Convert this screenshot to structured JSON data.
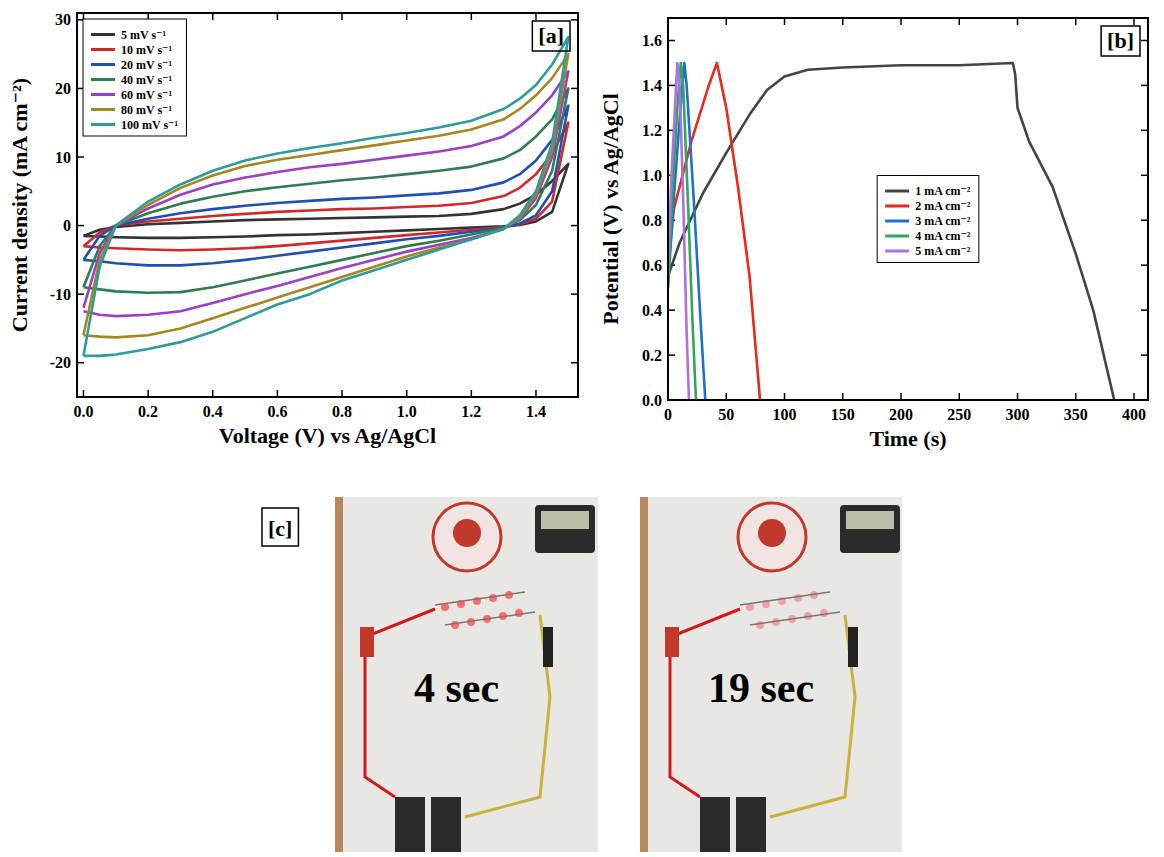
{
  "chart_data": [
    {
      "type": "line",
      "title": "[a]",
      "x_label": "Voltage (V) vs Ag/AgCl",
      "y_label": "Current density (mA cm⁻²)",
      "xlim": [
        -0.02,
        1.53
      ],
      "ylim": [
        -25,
        31
      ],
      "xticks": [
        {
          "value": 0,
          "label": "0.0"
        },
        0.2,
        0.4,
        0.6,
        0.8,
        {
          "value": 1,
          "label": "1.0"
        },
        1.2,
        1.4
      ],
      "yticks": [
        -20,
        -10,
        0,
        10,
        20,
        30
      ],
      "grid": false,
      "legend": "upper left",
      "x": [
        0,
        0.05,
        0.1,
        0.2,
        0.3,
        0.4,
        0.5,
        0.6,
        0.7,
        0.8,
        0.9,
        1.0,
        1.1,
        1.2,
        1.3,
        1.35,
        1.4,
        1.45,
        1.5,
        1.45,
        1.4,
        1.35,
        1.3,
        1.2,
        1.1,
        1.0,
        0.9,
        0.8,
        0.7,
        0.6,
        0.5,
        0.4,
        0.3,
        0.2,
        0.1,
        0.05,
        0
      ],
      "series": [
        {
          "name": "5 mV s⁻¹",
          "color": "#333333",
          "values": [
            -1.5,
            -0.6,
            -0.2,
            0.2,
            0.4,
            0.6,
            0.8,
            0.9,
            1,
            1.1,
            1.2,
            1.3,
            1.4,
            1.7,
            2.4,
            3.2,
            4.5,
            6.5,
            9,
            2,
            0.6,
            0.1,
            -0.1,
            -0.3,
            -0.5,
            -0.7,
            -0.9,
            -1.1,
            -1.3,
            -1.4,
            -1.6,
            -1.7,
            -1.8,
            -1.8,
            -1.7,
            -1.6,
            -1.5
          ]
        },
        {
          "name": "10 mV s⁻¹",
          "color": "#d62728",
          "values": [
            -3,
            -1,
            0,
            0.6,
            1,
            1.4,
            1.7,
            2,
            2.2,
            2.4,
            2.5,
            2.7,
            2.9,
            3.3,
            4.3,
            5.5,
            7.5,
            10.5,
            15,
            3.5,
            1,
            0.2,
            -0.2,
            -0.6,
            -1,
            -1.4,
            -1.8,
            -2.2,
            -2.6,
            -3,
            -3.3,
            -3.5,
            -3.6,
            -3.5,
            -3.3,
            -3.2,
            -3
          ]
        },
        {
          "name": "20 mV s⁻¹",
          "color": "#1f4fb4",
          "values": [
            -5,
            -1.5,
            0,
            1,
            1.8,
            2.4,
            2.9,
            3.3,
            3.6,
            3.9,
            4.1,
            4.4,
            4.7,
            5.2,
            6.3,
            7.5,
            9.5,
            12.5,
            17.5,
            5,
            1.5,
            0.3,
            -0.3,
            -0.9,
            -1.5,
            -2,
            -2.6,
            -3.2,
            -3.8,
            -4.4,
            -5,
            -5.5,
            -5.8,
            -5.8,
            -5.5,
            -5.2,
            -5
          ]
        },
        {
          "name": "40 mV s⁻¹",
          "color": "#2e7d4f",
          "values": [
            -9,
            -3,
            0,
            1.8,
            3.2,
            4.2,
            5,
            5.6,
            6.1,
            6.6,
            7,
            7.5,
            8,
            8.6,
            9.8,
            11,
            13,
            15.5,
            20,
            8,
            3,
            0.8,
            -0.3,
            -1.3,
            -2.2,
            -3,
            -4,
            -5,
            -6,
            -7,
            -8,
            -9,
            -9.7,
            -9.8,
            -9.6,
            -9.3,
            -9
          ]
        },
        {
          "name": "60 mV s⁻¹",
          "color": "#9b3fc9",
          "values": [
            -12,
            -4,
            0,
            2.5,
            4.5,
            6,
            7,
            7.8,
            8.5,
            9,
            9.6,
            10.2,
            10.8,
            11.6,
            13,
            14.5,
            16.5,
            19,
            22.5,
            10,
            4,
            1,
            -0.5,
            -1.8,
            -2.8,
            -3.8,
            -5,
            -6.2,
            -7.5,
            -8.8,
            -10,
            -11.3,
            -12.5,
            -13,
            -13.2,
            -13,
            -12.5
          ]
        },
        {
          "name": "80 mV s⁻¹",
          "color": "#a8861e",
          "values": [
            -16,
            -5,
            0,
            3,
            5.5,
            7.3,
            8.7,
            9.6,
            10.3,
            11,
            11.7,
            12.4,
            13.1,
            14,
            15.5,
            17,
            19,
            21.5,
            25,
            11,
            4.5,
            1.2,
            -0.5,
            -2,
            -3.2,
            -4.5,
            -6,
            -7.5,
            -9,
            -10.5,
            -12,
            -13.5,
            -15,
            -16,
            -16.3,
            -16.2,
            -16
          ]
        },
        {
          "name": "100 mV s⁻¹",
          "color": "#2a9d9a",
          "values": [
            -19,
            -6,
            0,
            3.5,
            6,
            8,
            9.5,
            10.5,
            11.3,
            12,
            12.8,
            13.5,
            14.3,
            15.3,
            17,
            18.5,
            20.5,
            23.5,
            27.5,
            12,
            5,
            1.5,
            -0.5,
            -2,
            -3.5,
            -5,
            -6.5,
            -8,
            -10,
            -11.5,
            -13.5,
            -15.5,
            -17,
            -18,
            -18.8,
            -19,
            -19
          ]
        }
      ]
    },
    {
      "type": "line",
      "title": "[b]",
      "x_label": "Time (s)",
      "y_label": "Potential (V) vs Ag/AgCl",
      "xlim": [
        0,
        412
      ],
      "ylim": [
        0,
        1.7
      ],
      "xticks": [
        0,
        50,
        100,
        150,
        200,
        250,
        300,
        350,
        400
      ],
      "yticks": [
        {
          "value": 0,
          "label": "0.0"
        },
        0.2,
        0.4,
        0.6,
        0.8,
        {
          "value": 1,
          "label": "1.0"
        },
        1.2,
        1.4,
        1.6
      ],
      "grid": false,
      "legend": "center",
      "series": [
        {
          "name": "1 mA cm⁻²",
          "color": "#444444",
          "x": [
            0,
            10,
            30,
            50,
            70,
            85,
            100,
            120,
            150,
            200,
            250,
            296,
            298,
            300,
            310,
            330,
            350,
            365,
            383
          ],
          "values": [
            0.55,
            0.7,
            0.92,
            1.1,
            1.27,
            1.38,
            1.44,
            1.47,
            1.48,
            1.49,
            1.49,
            1.5,
            1.45,
            1.3,
            1.15,
            0.95,
            0.65,
            0.4,
            0
          ]
        },
        {
          "name": "2 mA cm⁻²",
          "color": "#e8291c",
          "x": [
            0,
            5,
            20,
            35,
            42,
            44,
            50,
            60,
            70,
            79
          ],
          "values": [
            0.6,
            0.85,
            1.15,
            1.4,
            1.5,
            1.45,
            1.3,
            0.95,
            0.55,
            0
          ]
        },
        {
          "name": "3 mA cm⁻²",
          "color": "#1f6fd1",
          "x": [
            0,
            5,
            10,
            14,
            16,
            22,
            28,
            32
          ],
          "values": [
            0.5,
            0.9,
            1.25,
            1.5,
            1.4,
            0.9,
            0.35,
            0
          ]
        },
        {
          "name": "4 mA cm⁻²",
          "color": "#2ea85a",
          "x": [
            0,
            4,
            8,
            11,
            13,
            17,
            21,
            24
          ],
          "values": [
            0.5,
            0.95,
            1.3,
            1.5,
            1.4,
            0.9,
            0.35,
            0
          ]
        },
        {
          "name": "5 mA cm⁻²",
          "color": "#b070e0",
          "x": [
            0,
            3,
            6,
            8,
            10,
            13,
            16,
            18
          ],
          "values": [
            0.6,
            1.0,
            1.3,
            1.5,
            1.4,
            0.9,
            0.3,
            0
          ]
        }
      ]
    }
  ],
  "photo_panel": {
    "label": "[c]",
    "photos": [
      {
        "caption": "4 sec"
      },
      {
        "caption": "19 sec"
      }
    ]
  }
}
